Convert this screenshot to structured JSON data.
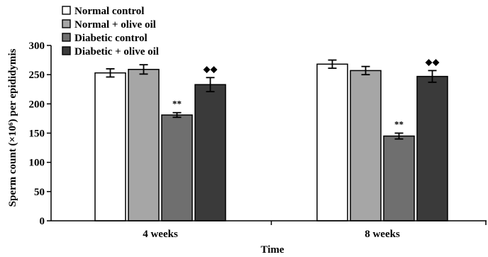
{
  "chart_data": {
    "type": "bar",
    "xlabel": "Time",
    "ylabel": "Sperm count (×10⁶) per epididymis",
    "ylim": [
      0,
      300
    ],
    "yticks": [
      0,
      50,
      100,
      150,
      200,
      250,
      300
    ],
    "grid": false,
    "legend_position": "top-left",
    "categories": [
      "4 weeks",
      "8 weeks"
    ],
    "series": [
      {
        "name": "Normal control",
        "color": "#ffffff",
        "values": [
          253,
          268
        ],
        "errors": [
          7,
          7
        ],
        "annotations": [
          "",
          ""
        ]
      },
      {
        "name": "Normal + olive oil",
        "color": "#a6a6a6",
        "values": [
          259,
          257
        ],
        "errors": [
          8,
          7
        ],
        "annotations": [
          "",
          ""
        ]
      },
      {
        "name": "Diabetic control",
        "color": "#6f6f6f",
        "values": [
          181,
          145
        ],
        "errors": [
          4,
          5
        ],
        "annotations": [
          "**",
          "**"
        ]
      },
      {
        "name": "Diabetic + olive oil",
        "color": "#3a3a3a",
        "values": [
          233,
          247
        ],
        "errors": [
          12,
          10
        ],
        "annotations": [
          "◆◆",
          "◆◆"
        ]
      }
    ]
  }
}
